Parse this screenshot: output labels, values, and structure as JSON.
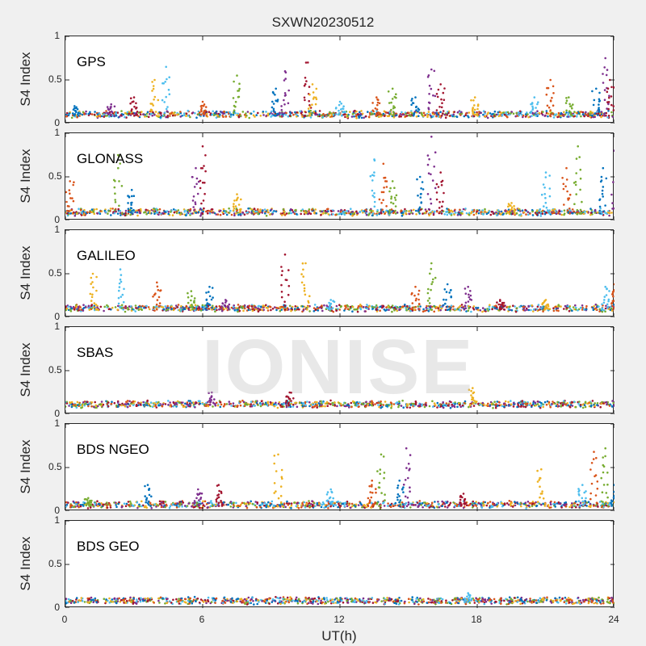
{
  "watermark": "IONISE",
  "chart_data": {
    "type": "scatter",
    "title": "SXWN20230512",
    "xlabel": "UT(h)",
    "ylabel": "S4 Index",
    "xlim": [
      0,
      24
    ],
    "ylim": [
      0,
      1
    ],
    "xticks": [
      "0",
      "6",
      "12",
      "18",
      "24"
    ],
    "yticks": [
      "0",
      "0.5",
      "1"
    ],
    "colors": [
      "#0072BD",
      "#D95319",
      "#EDB120",
      "#7E2F8E",
      "#77AC30",
      "#4DBEEE",
      "#A2142F"
    ],
    "panels": [
      {
        "label": "GPS",
        "base": 0.09,
        "spikes": [
          [
            0.4,
            0.2
          ],
          [
            2.0,
            0.22
          ],
          [
            3.0,
            0.3
          ],
          [
            3.9,
            0.5
          ],
          [
            4.4,
            0.65
          ],
          [
            6.0,
            0.25
          ],
          [
            7.5,
            0.55
          ],
          [
            9.2,
            0.4
          ],
          [
            9.6,
            0.6
          ],
          [
            10.6,
            0.7
          ],
          [
            10.8,
            0.45
          ],
          [
            12.0,
            0.25
          ],
          [
            13.6,
            0.3
          ],
          [
            14.3,
            0.4
          ],
          [
            15.3,
            0.3
          ],
          [
            16.0,
            0.62
          ],
          [
            16.4,
            0.45
          ],
          [
            17.9,
            0.3
          ],
          [
            20.5,
            0.3
          ],
          [
            21.2,
            0.5
          ],
          [
            22.0,
            0.3
          ],
          [
            23.2,
            0.4
          ],
          [
            23.6,
            0.75
          ],
          [
            23.8,
            0.5
          ]
        ]
      },
      {
        "label": "GLONASS",
        "base": 0.08,
        "spikes": [
          [
            0.2,
            0.45
          ],
          [
            2.3,
            0.75
          ],
          [
            2.9,
            0.35
          ],
          [
            5.7,
            0.6
          ],
          [
            6.0,
            0.85
          ],
          [
            7.5,
            0.3
          ],
          [
            13.5,
            0.7
          ],
          [
            13.9,
            0.65
          ],
          [
            14.3,
            0.45
          ],
          [
            15.5,
            0.5
          ],
          [
            16.0,
            0.96
          ],
          [
            16.4,
            0.55
          ],
          [
            19.5,
            0.2
          ],
          [
            21.0,
            0.55
          ],
          [
            21.9,
            0.6
          ],
          [
            22.4,
            0.85
          ],
          [
            23.5,
            0.6
          ],
          [
            24.0,
            0.8
          ]
        ]
      },
      {
        "label": "GALILEO",
        "base": 0.09,
        "spikes": [
          [
            1.2,
            0.5
          ],
          [
            2.4,
            0.55
          ],
          [
            4.0,
            0.4
          ],
          [
            5.5,
            0.3
          ],
          [
            6.3,
            0.35
          ],
          [
            7.0,
            0.2
          ],
          [
            9.6,
            0.72
          ],
          [
            10.5,
            0.62
          ],
          [
            11.6,
            0.2
          ],
          [
            15.3,
            0.35
          ],
          [
            16.0,
            0.62
          ],
          [
            16.7,
            0.38
          ],
          [
            17.6,
            0.35
          ],
          [
            19.0,
            0.2
          ],
          [
            21.0,
            0.2
          ],
          [
            23.6,
            0.35
          ],
          [
            24.0,
            0.38
          ]
        ]
      },
      {
        "label": "SBAS",
        "base": 0.1,
        "spikes": [
          [
            6.4,
            0.25
          ],
          [
            9.8,
            0.25
          ],
          [
            17.8,
            0.3
          ]
        ]
      },
      {
        "label": "BDS NGEO",
        "base": 0.06,
        "spikes": [
          [
            1.0,
            0.15
          ],
          [
            3.6,
            0.3
          ],
          [
            5.8,
            0.25
          ],
          [
            6.7,
            0.3
          ],
          [
            9.3,
            0.65
          ],
          [
            11.6,
            0.25
          ],
          [
            13.4,
            0.35
          ],
          [
            13.8,
            0.65
          ],
          [
            14.6,
            0.35
          ],
          [
            14.9,
            0.72
          ],
          [
            17.4,
            0.2
          ],
          [
            20.8,
            0.48
          ],
          [
            22.6,
            0.3
          ],
          [
            23.1,
            0.68
          ],
          [
            23.6,
            0.72
          ],
          [
            24.0,
            0.3
          ]
        ]
      },
      {
        "label": "BDS GEO",
        "base": 0.07,
        "spikes": [
          [
            17.6,
            0.17
          ]
        ]
      }
    ]
  }
}
